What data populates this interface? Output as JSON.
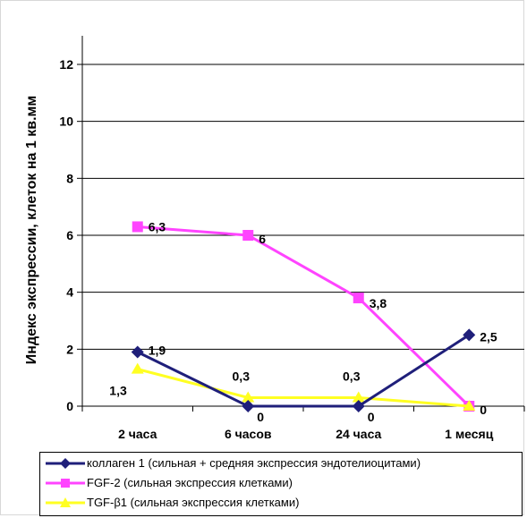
{
  "chart_data": {
    "type": "line",
    "title": "",
    "xlabel": "",
    "ylabel": "Индекс экспрессии, клеток на 1 кв.мм",
    "ylim": [
      0,
      13
    ],
    "yticks": [
      "0",
      "2",
      "4",
      "6",
      "8",
      "10",
      "12"
    ],
    "grid": true,
    "legend_position": "bottom",
    "categories": [
      "2 часа",
      "6 часов",
      "24 часа",
      "1 месяц"
    ],
    "series": [
      {
        "name": "коллаген 1  (сильная + средняя экспрессия эндотелиоцитами)",
        "values": [
          1.9,
          0,
          0,
          2.5
        ],
        "labels": [
          "1,9",
          "0",
          "0",
          "2,5"
        ],
        "color": "#1f1f7a",
        "marker": "diamond"
      },
      {
        "name": "FGF-2 (сильная экспрессия клетками)",
        "values": [
          6.3,
          6,
          3.8,
          0
        ],
        "labels": [
          "6,3",
          "6",
          "3,8",
          "0"
        ],
        "color": "#ff44ff",
        "marker": "square"
      },
      {
        "name": "TGF-β1 (сильная экспрессия клетками)",
        "values": [
          1.3,
          0.3,
          0.3,
          0
        ],
        "labels": [
          "1,3",
          "0,3",
          "0,3",
          ""
        ],
        "color": "#ffff22",
        "marker": "triangle"
      }
    ]
  }
}
